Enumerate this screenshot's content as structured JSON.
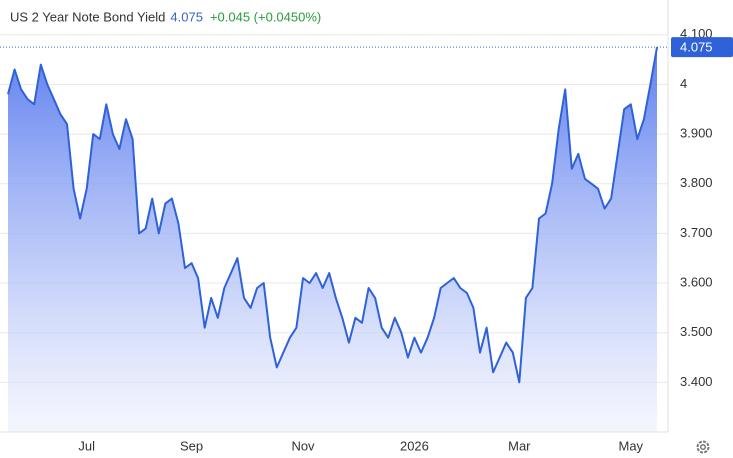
{
  "chart_data": {
    "type": "area",
    "title": "US 2 Year Note Bond Yield",
    "last": 4.075,
    "change": "+0.045 (+0.0450%)",
    "categories": [
      null,
      null,
      null,
      null,
      null,
      null,
      null,
      null,
      null,
      null,
      null,
      null,
      "Jul",
      null,
      null,
      null,
      null,
      null,
      null,
      null,
      null,
      null,
      null,
      null,
      null,
      null,
      null,
      null,
      "Sep",
      null,
      null,
      null,
      null,
      null,
      null,
      null,
      null,
      null,
      null,
      null,
      null,
      null,
      null,
      null,
      null,
      "Nov",
      null,
      null,
      null,
      null,
      null,
      null,
      null,
      null,
      null,
      null,
      null,
      null,
      null,
      null,
      null,
      null,
      "2026",
      null,
      null,
      null,
      null,
      null,
      null,
      null,
      null,
      null,
      null,
      null,
      null,
      null,
      null,
      null,
      "Mar",
      null,
      null,
      null,
      null,
      null,
      null,
      null,
      null,
      null,
      null,
      null,
      null,
      null,
      null,
      null,
      null,
      "May",
      null,
      null,
      null,
      null
    ],
    "series": [
      {
        "name": "US 2 Year Note Bond Yield",
        "color": "#2f62d8",
        "values": [
          3.98,
          4.03,
          3.99,
          3.97,
          3.96,
          4.04,
          4.0,
          3.97,
          3.94,
          3.92,
          3.79,
          3.73,
          3.79,
          3.9,
          3.89,
          3.96,
          3.9,
          3.87,
          3.93,
          3.89,
          3.7,
          3.71,
          3.77,
          3.7,
          3.76,
          3.77,
          3.72,
          3.63,
          3.64,
          3.61,
          3.51,
          3.57,
          3.53,
          3.59,
          3.62,
          3.65,
          3.57,
          3.55,
          3.59,
          3.6,
          3.49,
          3.43,
          3.46,
          3.49,
          3.51,
          3.61,
          3.6,
          3.62,
          3.59,
          3.62,
          3.57,
          3.53,
          3.48,
          3.53,
          3.52,
          3.59,
          3.57,
          3.51,
          3.49,
          3.53,
          3.5,
          3.45,
          3.49,
          3.46,
          3.49,
          3.53,
          3.59,
          3.6,
          3.61,
          3.59,
          3.58,
          3.55,
          3.46,
          3.51,
          3.42,
          3.45,
          3.48,
          3.46,
          3.4,
          3.57,
          3.59,
          3.73,
          3.74,
          3.8,
          3.91,
          3.99,
          3.83,
          3.86,
          3.81,
          3.8,
          3.79,
          3.75,
          3.77,
          3.86,
          3.95,
          3.96,
          3.89,
          3.93,
          4.0,
          4.075
        ]
      }
    ],
    "ylim": [
      3.3,
      4.17
    ],
    "yticks": [
      {
        "value": 3.4,
        "label": "3.400"
      },
      {
        "value": 3.5,
        "label": "3.500"
      },
      {
        "value": 3.6,
        "label": "3.600"
      },
      {
        "value": 3.7,
        "label": "3.700"
      },
      {
        "value": 3.8,
        "label": "3.800"
      },
      {
        "value": 3.9,
        "label": "3.900"
      },
      4,
      {
        "value": 4.1,
        "label": "4.100"
      }
    ],
    "grid": true
  }
}
